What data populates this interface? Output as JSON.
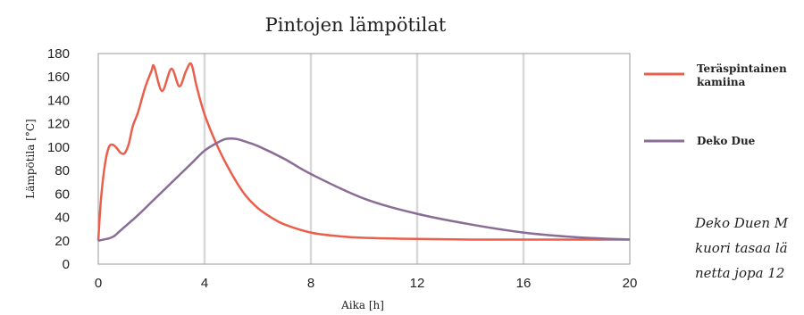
{
  "chart_data": {
    "type": "line",
    "title": "Pintojen lämpötilat",
    "xlabel": "Aika [h]",
    "ylabel": "Lämpötila [°C]",
    "xlim": [
      0,
      20
    ],
    "ylim": [
      0,
      180
    ],
    "xticks": [
      0,
      4,
      8,
      12,
      16,
      20
    ],
    "yticks": [
      0,
      20,
      40,
      60,
      80,
      100,
      120,
      140,
      160,
      180
    ],
    "grid": "vertical",
    "legend_position": "right",
    "series": [
      {
        "name": "Teräspintainen kamiina",
        "color": "#e8604c",
        "x": [
          0,
          0.1,
          0.25,
          0.4,
          0.55,
          0.7,
          0.85,
          1.0,
          1.15,
          1.3,
          1.5,
          1.75,
          2.0,
          2.1,
          2.4,
          2.75,
          3.05,
          3.3,
          3.5,
          3.7,
          4.0,
          4.5,
          5.0,
          5.5,
          6.0,
          6.5,
          7.0,
          8.0,
          9.0,
          10.0,
          12.0,
          14.0,
          16.0,
          18.0,
          20.0
        ],
        "y": [
          20,
          55,
          85,
          100,
          102,
          99,
          95,
          95,
          103,
          118,
          130,
          150,
          165,
          169,
          148,
          167,
          152,
          165,
          171,
          152,
          128,
          100,
          78,
          60,
          48,
          40,
          34,
          27,
          24,
          22.5,
          21.5,
          21,
          21,
          21,
          21
        ]
      },
      {
        "name": "Deko Due",
        "color": "#8a6d95",
        "x": [
          0,
          0.2,
          0.4,
          0.6,
          0.8,
          1.0,
          1.5,
          2.0,
          2.5,
          3.0,
          3.5,
          4.0,
          4.5,
          4.8,
          5.2,
          5.5,
          6.0,
          7.0,
          8.0,
          10.0,
          12.0,
          14.0,
          16.0,
          18.0,
          20.0
        ],
        "y": [
          20,
          21,
          22,
          24,
          28,
          32,
          42,
          53,
          64,
          75,
          86,
          97,
          104,
          107,
          107,
          105,
          101,
          90,
          77,
          56,
          43,
          34,
          27,
          23,
          21
        ]
      }
    ]
  },
  "note": {
    "lines": [
      "Deko Duen M",
      "kuori tasaa lä",
      "netta jopa 12"
    ]
  }
}
